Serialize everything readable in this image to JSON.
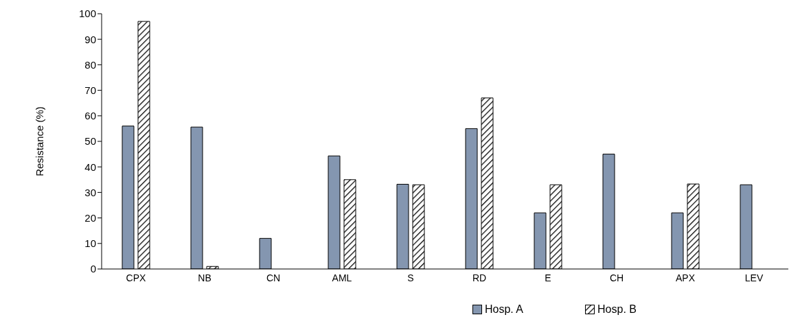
{
  "chart_data": {
    "type": "bar",
    "ylabel": "Resistance (%)",
    "categories": [
      "CPX",
      "NB",
      "CN",
      "AML",
      "S",
      "RD",
      "E",
      "CH",
      "APX",
      "LEV"
    ],
    "series": [
      {
        "name": "Hosp. A",
        "color": "#8496b0",
        "values": [
          56,
          55.6,
          12,
          44.3,
          33.2,
          55,
          22,
          45,
          22,
          33
        ]
      },
      {
        "name": "Hosp. B",
        "color": "#000000",
        "values": [
          97,
          1,
          0,
          35,
          33,
          67,
          33,
          0,
          33.3,
          0
        ]
      }
    ],
    "ylim": [
      0,
      100
    ],
    "yticks": [
      0,
      10,
      20,
      30,
      40,
      50,
      60,
      70,
      80,
      90,
      100
    ],
    "grid": false,
    "legend": "bottom"
  }
}
